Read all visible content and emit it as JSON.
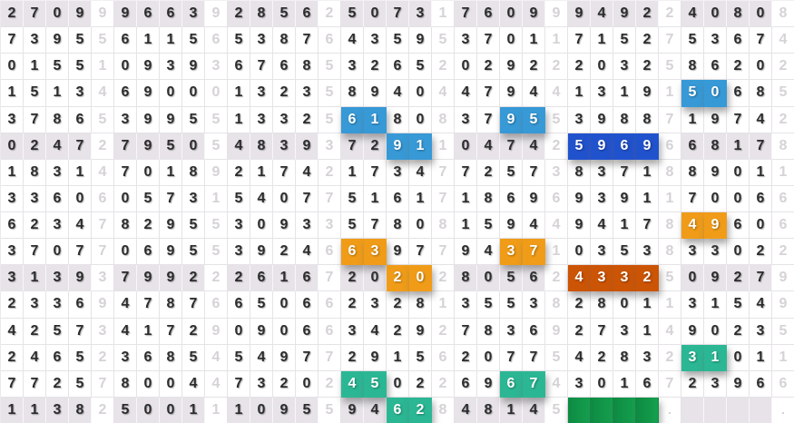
{
  "chart_data": {
    "type": "table",
    "title": "lottery-number-trend-grid",
    "columns": 35,
    "row_count": 16,
    "group_size": 5,
    "light_columns": [
      5,
      10,
      15,
      20,
      25,
      30,
      35
    ],
    "shaded_rows": [
      1,
      6,
      11,
      16
    ],
    "rows": [
      "27099966392856250731760999492240808",
      "73955611565387643595370117152753674",
      "01551093936768532652029222032586202",
      "15134690001323589404479441319150685",
      "37865399551332561808379553988719742",
      "02472795054839372911047425969668178",
      "18314701892174217347725738371889011",
      "33606057315407751617186969391170066",
      "62347829553093357808159449417849606",
      "37077069553924663977943710353833022",
      "31393799222616720202805624332509279",
      "23369478766506623281355382801131549",
      "42573417290906634292783692731490235",
      "24652368545497729156207754283231011",
      "77257800447320245022696743016723966",
      "1138250011109559462848145____.    ."
    ],
    "highlights": [
      {
        "row": 4,
        "cols": [
          31,
          32
        ],
        "color": "lightblue",
        "digits": "50"
      },
      {
        "row": 5,
        "cols": [
          16,
          17
        ],
        "color": "lightblue",
        "digits": "61"
      },
      {
        "row": 5,
        "cols": [
          23,
          24
        ],
        "color": "lightblue",
        "digits": "95"
      },
      {
        "row": 6,
        "cols": [
          18,
          19
        ],
        "color": "lightblue",
        "digits": "91"
      },
      {
        "row": 6,
        "cols": [
          26,
          27,
          28,
          29
        ],
        "color": "darkblue",
        "digits": "5969"
      },
      {
        "row": 9,
        "cols": [
          31,
          32
        ],
        "color": "orange",
        "digits": "49"
      },
      {
        "row": 10,
        "cols": [
          16,
          17
        ],
        "color": "orange",
        "digits": "63"
      },
      {
        "row": 10,
        "cols": [
          23,
          24
        ],
        "color": "orange",
        "digits": "37"
      },
      {
        "row": 11,
        "cols": [
          18,
          19
        ],
        "color": "orange",
        "digits": "20"
      },
      {
        "row": 11,
        "cols": [
          26,
          27,
          28,
          29
        ],
        "color": "darkorange",
        "digits": "4332"
      },
      {
        "row": 14,
        "cols": [
          31,
          32
        ],
        "color": "teal",
        "digits": "31"
      },
      {
        "row": 15,
        "cols": [
          16,
          17
        ],
        "color": "teal",
        "digits": "45"
      },
      {
        "row": 15,
        "cols": [
          23,
          24
        ],
        "color": "teal",
        "digits": "67"
      },
      {
        "row": 16,
        "cols": [
          18,
          19
        ],
        "color": "teal",
        "digits": "62"
      },
      {
        "row": 16,
        "cols": [
          26,
          27,
          28,
          29
        ],
        "color": "green",
        "digits": ""
      }
    ]
  },
  "colors": {
    "lightblue": "#3799d6",
    "darkblue": "#2152cd",
    "orange": "#f09c18",
    "darkorange": "#cc5405",
    "teal": "#2bb794",
    "green_dark": "#0e8a42",
    "green_light": "#14a04e",
    "shaded_row_bg": "#e7e3e9",
    "dark_digit": "#2c2c2c",
    "light_digit": "#d6d2d7",
    "grid_line": "#e5e3e6"
  }
}
